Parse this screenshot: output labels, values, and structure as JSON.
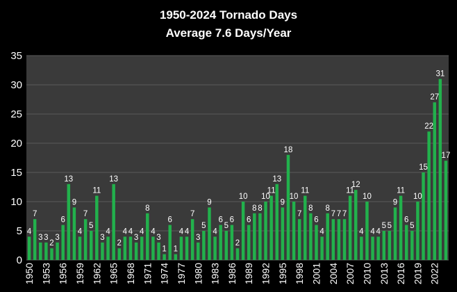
{
  "chart_data": {
    "type": "bar",
    "title": "1950-2024 Tornado Days",
    "subtitle": "Average 7.6 Days/Year",
    "xlabel": "",
    "ylabel": "",
    "ylim": [
      0,
      35
    ],
    "yticks": [
      0,
      5,
      10,
      15,
      20,
      25,
      30,
      35
    ],
    "grid": true,
    "legend": "none",
    "bar_color": "#22b14c",
    "plot_background": "#3a3a3a",
    "background": "#000000",
    "x": [
      1950,
      1951,
      1952,
      1953,
      1954,
      1955,
      1956,
      1957,
      1958,
      1959,
      1960,
      1961,
      1962,
      1963,
      1964,
      1965,
      1966,
      1967,
      1968,
      1969,
      1970,
      1971,
      1972,
      1973,
      1974,
      1975,
      1976,
      1977,
      1978,
      1979,
      1980,
      1981,
      1982,
      1983,
      1984,
      1985,
      1986,
      1987,
      1988,
      1989,
      1990,
      1991,
      1992,
      1993,
      1994,
      1995,
      1996,
      1997,
      1998,
      1999,
      2000,
      2001,
      2002,
      2003,
      2004,
      2005,
      2006,
      2007,
      2008,
      2009,
      2010,
      2011,
      2012,
      2013,
      2014,
      2015,
      2016,
      2017,
      2018,
      2019,
      2020,
      2021,
      2022,
      2023,
      2024
    ],
    "values": [
      4,
      7,
      3,
      3,
      2,
      3,
      6,
      13,
      9,
      4,
      7,
      5,
      11,
      3,
      4,
      13,
      2,
      4,
      4,
      3,
      4,
      8,
      4,
      3,
      1,
      6,
      1,
      4,
      4,
      7,
      3,
      5,
      9,
      4,
      6,
      5,
      6,
      2,
      10,
      6,
      8,
      8,
      10,
      11,
      13,
      9,
      18,
      10,
      7,
      11,
      8,
      6,
      4,
      8,
      7,
      7,
      7,
      11,
      12,
      4,
      10,
      4,
      4,
      5,
      5,
      9,
      11,
      6,
      5,
      10,
      15,
      22,
      27,
      31,
      17
    ],
    "xtick_labels": [
      "1950",
      "1953",
      "1956",
      "1959",
      "1962",
      "1965",
      "1968",
      "1971",
      "1974",
      "1977",
      "1980",
      "1983",
      "1986",
      "1989",
      "1992",
      "1995",
      "1998",
      "2001",
      "2004",
      "2007",
      "2010",
      "2013",
      "2016",
      "2019",
      "2022"
    ]
  }
}
